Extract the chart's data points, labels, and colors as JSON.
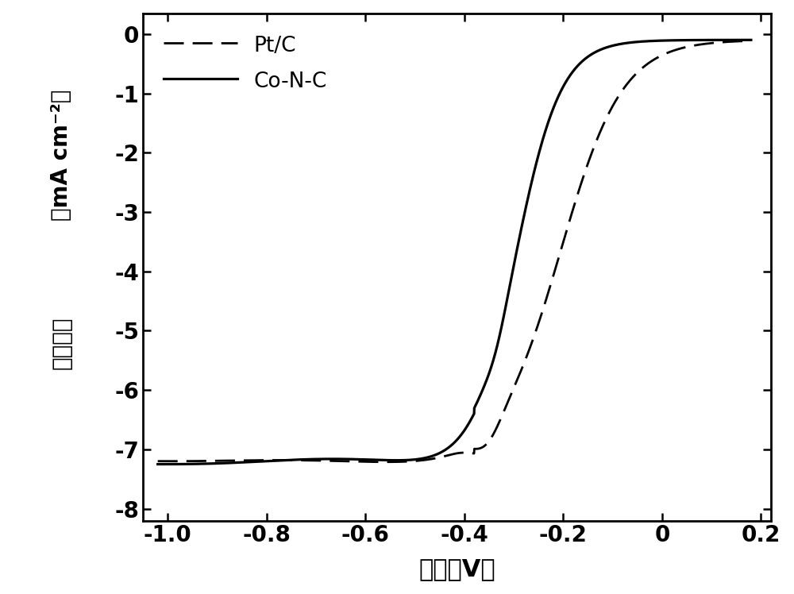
{
  "xlim": [
    -1.05,
    0.22
  ],
  "ylim": [
    -8.2,
    0.35
  ],
  "xticks": [
    -1.0,
    -0.8,
    -0.6,
    -0.4,
    -0.2,
    0.0,
    0.2
  ],
  "yticks": [
    0,
    -1,
    -2,
    -3,
    -4,
    -5,
    -6,
    -7,
    -8
  ],
  "xlabel": "电压（V）",
  "ylabel_top": "（mA cm⁻²）",
  "ylabel_bottom": "电流密度",
  "legend_ptc": "Pt/C",
  "legend_conc": "Co-N-C",
  "line_color": "#000000",
  "background_color": "#ffffff",
  "figsize": [
    10.0,
    7.48
  ],
  "dpi": 100
}
